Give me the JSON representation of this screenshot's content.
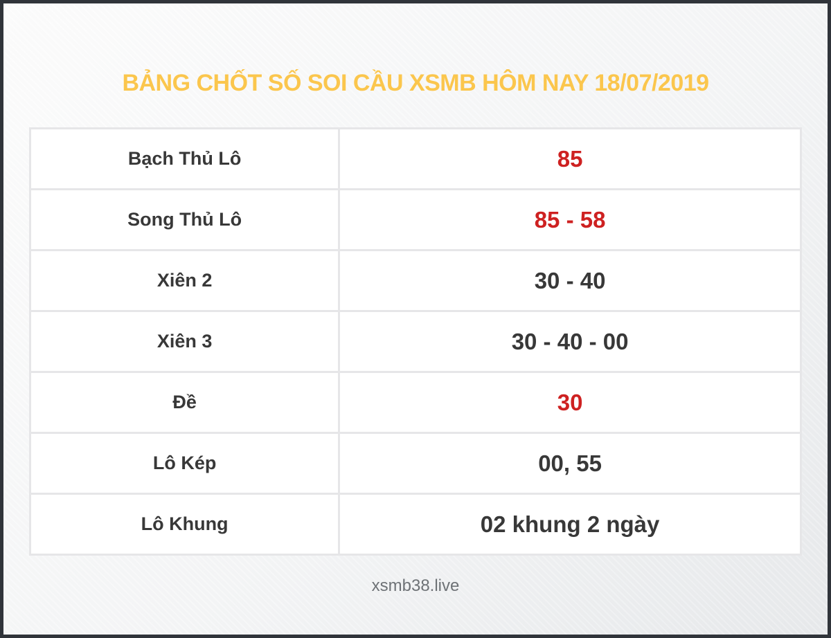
{
  "title": "BẢNG CHỐT SỐ SOI CẦU XSMB HÔM NAY 18/07/2019",
  "footer": "xsmb38.live",
  "colors": {
    "title_gold": "#FBC64D",
    "value_red": "#CE2121",
    "text_dark": "#383838",
    "footer_gray": "#6E7276",
    "table_border": "#E6E6E8",
    "frame_border": "#30343A",
    "cell_background": "#FFFFFF"
  },
  "chart_data": {
    "type": "table",
    "title": "BẢNG CHỐT SỐ SOI CẦU XSMB HÔM NAY 18/07/2019",
    "columns": [
      "label",
      "value"
    ],
    "rows": [
      {
        "label": "Bạch Thủ Lô",
        "value": "85",
        "value_color": "#CE2121"
      },
      {
        "label": "Song Thủ Lô",
        "value": "85 - 58",
        "value_color": "#CE2121"
      },
      {
        "label": "Xiên 2",
        "value": "30 - 40",
        "value_color": "#383838"
      },
      {
        "label": "Xiên 3",
        "value": "30 - 40 - 00",
        "value_color": "#383838"
      },
      {
        "label": "Đề",
        "value": "30",
        "value_color": "#CE2121"
      },
      {
        "label": "Lô Kép",
        "value": "00, 55",
        "value_color": "#383838"
      },
      {
        "label": "Lô Khung",
        "value": "02 khung 2 ngày",
        "value_color": "#383838"
      }
    ]
  }
}
